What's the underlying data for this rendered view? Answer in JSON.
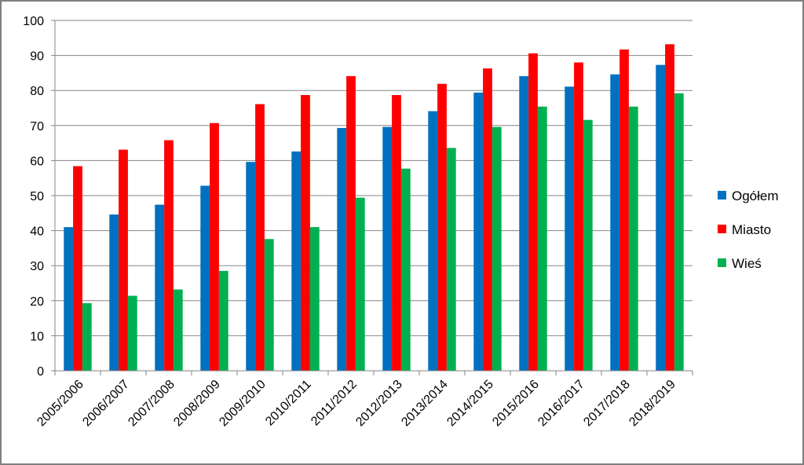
{
  "chart_data": {
    "type": "bar",
    "title": "",
    "xlabel": "",
    "ylabel": "",
    "ylim": [
      0,
      100
    ],
    "yticks": [
      0,
      10,
      20,
      30,
      40,
      50,
      60,
      70,
      80,
      90,
      100
    ],
    "grid": true,
    "legend_position": "right",
    "categories": [
      "2005/2006",
      "2006/2007",
      "2007/2008",
      "2008/2009",
      "2009/2010",
      "2010/2011",
      "2011/2012",
      "2012/2013",
      "2013/2014",
      "2014/2015",
      "2015/2016",
      "2016/2017",
      "2017/2018",
      "2018/2019"
    ],
    "series": [
      {
        "name": "Ogółem",
        "color": "#0070c0",
        "values": [
          41.0,
          44.6,
          47.4,
          52.8,
          59.6,
          62.6,
          69.3,
          69.6,
          74.1,
          79.4,
          84.1,
          81.1,
          84.6,
          87.3
        ]
      },
      {
        "name": "Miasto",
        "color": "#ff0000",
        "values": [
          58.4,
          63.1,
          65.8,
          70.7,
          76.1,
          78.7,
          84.1,
          78.7,
          81.9,
          86.3,
          90.6,
          88.0,
          91.7,
          93.2
        ]
      },
      {
        "name": "Wieś",
        "color": "#00b050",
        "values": [
          19.3,
          21.4,
          23.2,
          28.5,
          37.6,
          41.0,
          49.4,
          57.7,
          63.6,
          69.6,
          75.4,
          71.6,
          75.4,
          79.2
        ]
      }
    ]
  }
}
